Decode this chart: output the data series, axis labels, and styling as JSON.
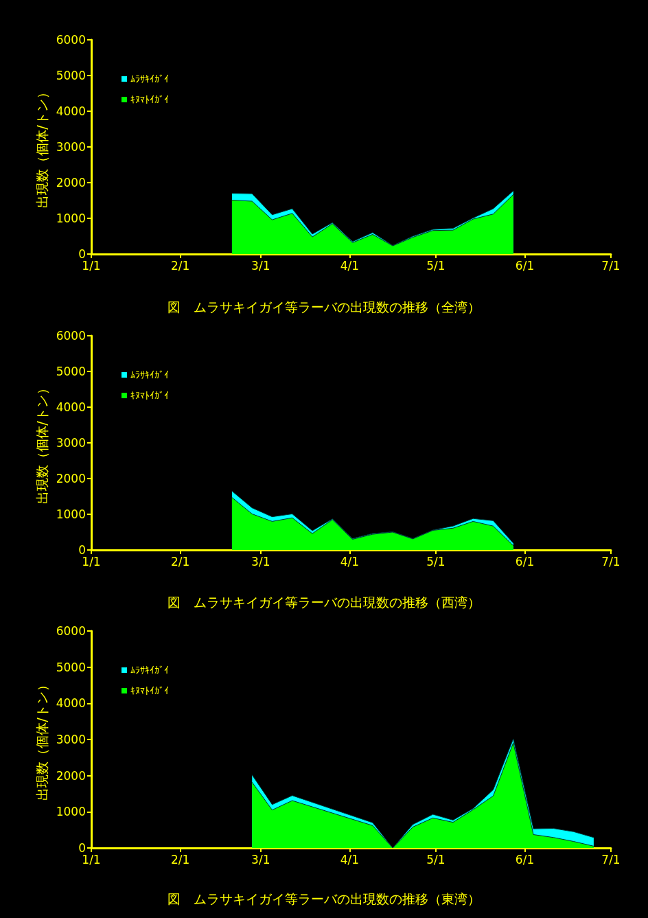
{
  "chart_data": [
    {
      "type": "area",
      "stacked": true,
      "title": "図　ムラサキイガイ等ラーバの出現数の推移（全湾）",
      "ylabel": "出現数（個体/トン）",
      "legend": "top left",
      "marker": "none",
      "x": [
        "--02-19",
        "--02-26",
        "--03-05",
        "--03-12",
        "--03-19",
        "--03-26",
        "--04-02",
        "--04-09",
        "--04-16",
        "--04-23",
        "--04-30",
        "--05-07",
        "--05-14",
        "--05-21",
        "--05-28"
      ],
      "xlim": [
        "--01-01",
        "--07-01"
      ],
      "xticks": [
        {
          "value": "--01-01",
          "label": "1/1"
        },
        {
          "value": "--02-01",
          "label": "2/1"
        },
        {
          "value": "--03-01",
          "label": "3/1"
        },
        {
          "value": "--04-01",
          "label": "4/1"
        },
        {
          "value": "--05-01",
          "label": "5/1"
        },
        {
          "value": "--06-01",
          "label": "6/1"
        },
        {
          "value": "--07-01",
          "label": "7/1"
        }
      ],
      "ylim": [
        0,
        6000
      ],
      "yticks": [
        0,
        1000,
        2000,
        3000,
        4000,
        5000,
        6000
      ],
      "series": [
        {
          "name": "ｷﾇﾏﾄｲｶﾞｲ",
          "color": "#00ff00",
          "values": [
            1510,
            1480,
            960,
            1140,
            480,
            850,
            320,
            550,
            230,
            470,
            660,
            670,
            980,
            1120,
            1670
          ]
        },
        {
          "name": "ﾑﾗｻｷｲｶﾞｲ",
          "color": "#00ffff",
          "values": [
            190,
            210,
            140,
            130,
            80,
            30,
            30,
            50,
            10,
            30,
            30,
            50,
            30,
            150,
            100
          ]
        }
      ]
    },
    {
      "type": "area",
      "stacked": true,
      "title": "図　ムラサキイガイ等ラーバの出現数の推移（西湾）",
      "ylabel": "出現数（個体/トン）",
      "legend": "top left",
      "marker": "none",
      "x": [
        "--02-19",
        "--02-26",
        "--03-05",
        "--03-12",
        "--03-19",
        "--03-26",
        "--04-02",
        "--04-09",
        "--04-16",
        "--04-23",
        "--04-30",
        "--05-07",
        "--05-14",
        "--05-21",
        "--05-28"
      ],
      "xlim": [
        "--01-01",
        "--07-01"
      ],
      "xticks": [
        {
          "value": "--01-01",
          "label": "1/1"
        },
        {
          "value": "--02-01",
          "label": "2/1"
        },
        {
          "value": "--03-01",
          "label": "3/1"
        },
        {
          "value": "--04-01",
          "label": "4/1"
        },
        {
          "value": "--05-01",
          "label": "5/1"
        },
        {
          "value": "--06-01",
          "label": "6/1"
        },
        {
          "value": "--07-01",
          "label": "7/1"
        }
      ],
      "ylim": [
        0,
        6000
      ],
      "yticks": [
        0,
        1000,
        2000,
        3000,
        4000,
        5000,
        6000
      ],
      "series": [
        {
          "name": "ｷﾇﾏﾄｲｶﾞｲ",
          "color": "#00ff00",
          "values": [
            1470,
            1010,
            800,
            900,
            460,
            850,
            300,
            440,
            500,
            310,
            550,
            610,
            800,
            670,
            120
          ]
        },
        {
          "name": "ﾑﾗｻｷｲｶﾞｲ",
          "color": "#00ffff",
          "values": [
            180,
            170,
            130,
            110,
            80,
            20,
            20,
            20,
            10,
            10,
            10,
            60,
            80,
            150,
            70
          ]
        }
      ]
    },
    {
      "type": "area",
      "stacked": true,
      "title": "図　ムラサキイガイ等ラーバの出現数の推移（東湾）",
      "ylabel": "出現数（個体/トン）",
      "legend": "top left",
      "marker": "none",
      "x": [
        "--02-26",
        "--03-05",
        "--03-12",
        "--04-09",
        "--04-16",
        "--04-23",
        "--04-30",
        "--05-07",
        "--05-14",
        "--05-21",
        "--05-28",
        "--06-04",
        "--06-11",
        "--06-18",
        "--06-25"
      ],
      "xlim": [
        "--01-01",
        "--07-01"
      ],
      "xticks": [
        {
          "value": "--01-01",
          "label": "1/1"
        },
        {
          "value": "--02-01",
          "label": "2/1"
        },
        {
          "value": "--03-01",
          "label": "3/1"
        },
        {
          "value": "--04-01",
          "label": "4/1"
        },
        {
          "value": "--05-01",
          "label": "5/1"
        },
        {
          "value": "--06-01",
          "label": "6/1"
        },
        {
          "value": "--07-01",
          "label": "7/1"
        }
      ],
      "ylim": [
        0,
        6000
      ],
      "yticks": [
        0,
        1000,
        2000,
        3000,
        4000,
        5000,
        6000
      ],
      "series": [
        {
          "name": "ｷﾇﾏﾄｲｶﾞｲ",
          "color": "#00ff00",
          "values": [
            1820,
            1050,
            1310,
            620,
            0,
            580,
            830,
            710,
            1060,
            1440,
            2910,
            370,
            290,
            180,
            50
          ]
        },
        {
          "name": "ﾑﾗｻｷｲｶﾞｲ",
          "color": "#00ffff",
          "values": [
            200,
            150,
            140,
            80,
            0,
            70,
            100,
            60,
            30,
            170,
            110,
            160,
            250,
            270,
            240
          ]
        }
      ]
    }
  ]
}
